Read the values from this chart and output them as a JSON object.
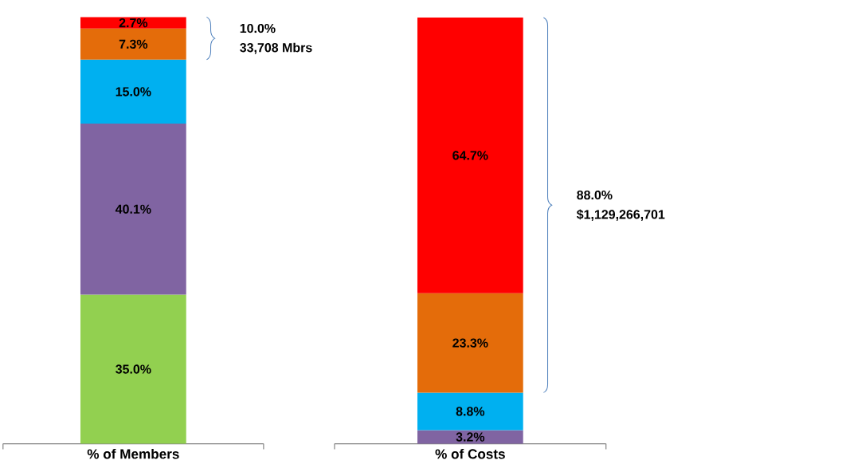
{
  "chart_data": [
    {
      "type": "bar",
      "stacked": true,
      "categories": [
        "% of Members"
      ],
      "ylim": [
        0,
        100.1
      ],
      "series": [
        {
          "color": "#92d050",
          "values": [
            35.0
          ],
          "value_labels": [
            "35.0%"
          ]
        },
        {
          "color": "#8064a2",
          "values": [
            40.1
          ],
          "value_labels": [
            "40.1%"
          ]
        },
        {
          "color": "#00b0f0",
          "values": [
            15.0
          ],
          "value_labels": [
            "15.0%"
          ]
        },
        {
          "color": "#e46c0a",
          "values": [
            7.3
          ],
          "value_labels": [
            "7.3%"
          ]
        },
        {
          "color": "#ff0000",
          "values": [
            2.7
          ],
          "value_labels": [
            "2.7%"
          ]
        }
      ],
      "annotations": [
        "10.0%",
        "33,708 Mbrs"
      ]
    },
    {
      "type": "bar",
      "stacked": true,
      "categories": [
        "% of Costs"
      ],
      "ylim": [
        0,
        100.1
      ],
      "series": [
        {
          "color": "#92d050",
          "values": [
            null
          ],
          "value_labels": [
            null
          ]
        },
        {
          "color": "#8064a2",
          "values": [
            3.2
          ],
          "value_labels": [
            "3.2%"
          ]
        },
        {
          "color": "#00b0f0",
          "values": [
            8.8
          ],
          "value_labels": [
            "8.8%"
          ]
        },
        {
          "color": "#e46c0a",
          "values": [
            23.3
          ],
          "value_labels": [
            "23.3%"
          ]
        },
        {
          "color": "#ff0000",
          "values": [
            64.7
          ],
          "value_labels": [
            "64.7%"
          ]
        }
      ],
      "annotations": [
        "88.0%",
        "$1,129,266,701"
      ]
    }
  ]
}
